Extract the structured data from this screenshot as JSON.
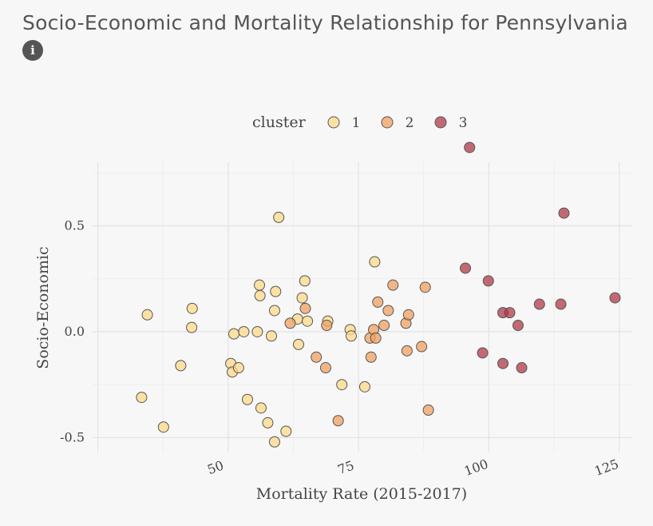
{
  "header": {
    "title": "Socio-Economic and Mortality Relationship for Pennsylvania",
    "info_icon": "info-icon",
    "info_glyph": "i"
  },
  "chart_data": {
    "type": "scatter",
    "title": "Socio-Economic and Mortality Relationship for Pennsylvania",
    "xlabel": "Mortality Rate (2015-2017)",
    "ylabel": "Socio-Economic",
    "xlim": [
      24,
      127.5
    ],
    "ylim": [
      -0.57,
      0.8
    ],
    "x_ticks": [
      50,
      75,
      100,
      125
    ],
    "x_tick_labels": [
      "50",
      "75",
      "100",
      "125"
    ],
    "y_ticks": [
      -0.5,
      0.0,
      0.5
    ],
    "y_tick_labels": [
      "-0.5",
      "0.0",
      "0.5"
    ],
    "grid": true,
    "legend": {
      "title": "cluster",
      "placement": "top"
    },
    "series": [
      {
        "name": "1",
        "color": "#fdd98a",
        "points": [
          [
            33.4,
            -0.31
          ],
          [
            34.5,
            0.08
          ],
          [
            37.6,
            -0.45
          ],
          [
            40.9,
            -0.16
          ],
          [
            43.1,
            0.11
          ],
          [
            43.0,
            0.02
          ],
          [
            50.5,
            -0.15
          ],
          [
            50.8,
            -0.19
          ],
          [
            51.1,
            -0.01
          ],
          [
            52.0,
            -0.17
          ],
          [
            53.0,
            0.0
          ],
          [
            53.7,
            -0.32
          ],
          [
            55.6,
            0.0
          ],
          [
            56.0,
            0.22
          ],
          [
            56.1,
            0.17
          ],
          [
            56.3,
            -0.36
          ],
          [
            57.6,
            -0.43
          ],
          [
            58.3,
            -0.02
          ],
          [
            58.9,
            -0.52
          ],
          [
            58.9,
            0.1
          ],
          [
            59.1,
            0.19
          ],
          [
            59.7,
            0.54
          ],
          [
            61.1,
            -0.47
          ],
          [
            63.3,
            0.06
          ],
          [
            63.5,
            -0.06
          ],
          [
            64.2,
            0.16
          ],
          [
            64.7,
            0.24
          ],
          [
            65.2,
            0.05
          ],
          [
            69.1,
            0.05
          ],
          [
            71.8,
            -0.25
          ],
          [
            73.4,
            0.01
          ],
          [
            73.6,
            -0.02
          ],
          [
            76.2,
            -0.26
          ],
          [
            78.1,
            0.33
          ]
        ]
      },
      {
        "name": "2",
        "color": "#f0a060",
        "points": [
          [
            61.9,
            0.04
          ],
          [
            64.8,
            0.11
          ],
          [
            66.9,
            -0.12
          ],
          [
            68.7,
            -0.17
          ],
          [
            68.9,
            0.03
          ],
          [
            71.1,
            -0.42
          ],
          [
            77.2,
            -0.03
          ],
          [
            77.4,
            -0.12
          ],
          [
            77.9,
            0.01
          ],
          [
            78.3,
            -0.03
          ],
          [
            78.7,
            0.14
          ],
          [
            79.9,
            0.03
          ],
          [
            80.7,
            0.1
          ],
          [
            81.6,
            0.22
          ],
          [
            84.1,
            0.04
          ],
          [
            84.3,
            -0.09
          ],
          [
            84.6,
            0.08
          ],
          [
            87.1,
            -0.07
          ],
          [
            87.8,
            0.21
          ],
          [
            88.4,
            -0.37
          ]
        ]
      },
      {
        "name": "3",
        "color": "#b03a48",
        "points": [
          [
            95.5,
            0.3
          ],
          [
            96.3,
            0.87
          ],
          [
            98.8,
            -0.1
          ],
          [
            99.9,
            0.24
          ],
          [
            102.7,
            0.09
          ],
          [
            102.7,
            -0.15
          ],
          [
            104.0,
            0.09
          ],
          [
            105.6,
            0.03
          ],
          [
            106.3,
            -0.17
          ],
          [
            109.7,
            0.13
          ],
          [
            113.8,
            0.13
          ],
          [
            114.4,
            0.56
          ],
          [
            124.2,
            0.16
          ]
        ]
      }
    ]
  }
}
